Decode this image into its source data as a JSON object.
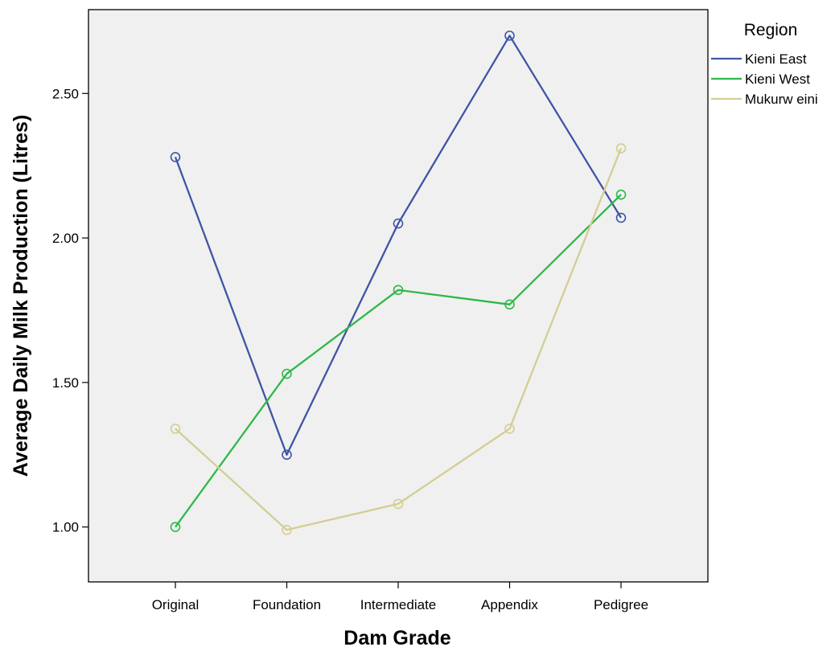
{
  "chart_data": {
    "type": "line",
    "title": "",
    "xlabel": "Dam Grade",
    "ylabel": "Average Daily Milk Production (Litres)",
    "categories": [
      "Original",
      "Foundation",
      "Intermediate",
      "Appendix",
      "Pedigree"
    ],
    "ylim": [
      0.81,
      2.79
    ],
    "yticks": [
      1.0,
      1.5,
      2.0,
      2.5
    ],
    "ytick_labels": [
      "1.00",
      "1.50",
      "2.00",
      "2.50"
    ],
    "grid": false,
    "marker": "open-circle",
    "legend": {
      "title": "Region",
      "placement": "right"
    },
    "series": [
      {
        "name": "Kieni East",
        "color": "#3f55a5",
        "values": [
          2.28,
          1.25,
          2.05,
          2.7,
          2.07
        ]
      },
      {
        "name": "Kieni West",
        "color": "#2eb847",
        "values": [
          1.0,
          1.53,
          1.82,
          1.77,
          2.15
        ]
      },
      {
        "name": "Mukurw eini",
        "color": "#d3cd94",
        "values": [
          1.34,
          0.99,
          1.08,
          1.34,
          2.31
        ]
      }
    ]
  }
}
